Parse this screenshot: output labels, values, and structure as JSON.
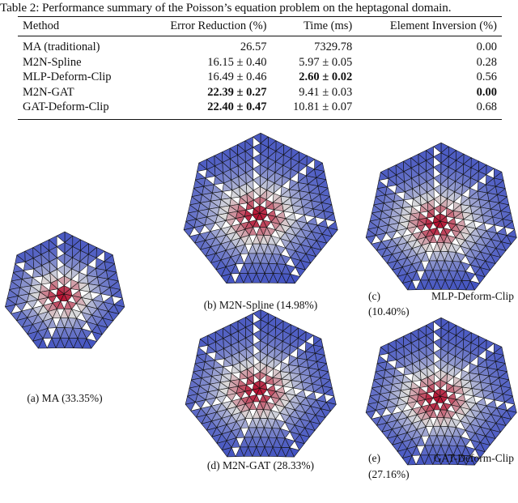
{
  "table": {
    "caption": "Table 2: Performance summary of the Poisson’s equation problem on the heptagonal domain.",
    "headers": [
      "Method",
      "Error Reduction (%)",
      "Time (ms)",
      "Element Inversion (%)"
    ],
    "rows": [
      {
        "method": "MA (traditional)",
        "error": "26.57",
        "time": "7329.78",
        "inversion": "0.00",
        "bold": []
      },
      {
        "method": "M2N-Spline",
        "error": "16.15 ± 0.40",
        "time": "5.97 ± 0.05",
        "inversion": "0.28",
        "bold": []
      },
      {
        "method": "MLP-Deform-Clip",
        "error": "16.49 ± 0.46",
        "time": "2.60 ± 0.02",
        "inversion": "0.56",
        "bold": [
          "time"
        ]
      },
      {
        "method": "M2N-GAT",
        "error": "22.39 ± 0.27",
        "time": "9.41 ± 0.03",
        "inversion": "0.00",
        "bold": [
          "error",
          "inversion"
        ]
      },
      {
        "method": "GAT-Deform-Clip",
        "error": "22.40 ± 0.47",
        "time": "10.81 ± 0.07",
        "inversion": "0.68",
        "bold": [
          "error"
        ]
      }
    ]
  },
  "figures": [
    {
      "id": "a",
      "label": "(a)",
      "method": "MA",
      "error": "(33.35%)"
    },
    {
      "id": "b",
      "label": "(b)",
      "method": "M2N-Spline",
      "error": "(14.98%)"
    },
    {
      "id": "c",
      "label": "(c)",
      "method": "MLP-Deform-Clip",
      "error": "(10.40%)"
    },
    {
      "id": "d",
      "label": "(d)",
      "method": "M2N-GAT",
      "error": "(28.33%)"
    },
    {
      "id": "e",
      "label": "(e)",
      "method": "GAT-Deform-Clip",
      "error": "(27.16%)"
    }
  ],
  "colors": {
    "low": "#3b4cc0",
    "mid": "#dcdcdc",
    "high": "#b40426"
  }
}
